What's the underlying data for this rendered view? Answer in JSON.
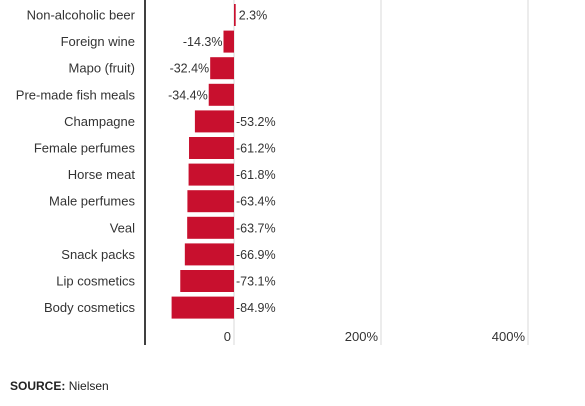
{
  "chart_data": {
    "type": "bar",
    "orientation": "horizontal",
    "categories": [
      "Non-alcoholic beer",
      "Foreign wine",
      "Mapo (fruit)",
      "Pre-made fish meals",
      "Champagne",
      "Female perfumes",
      "Horse meat",
      "Male perfumes",
      "Veal",
      "Snack packs",
      "Lip cosmetics",
      "Body cosmetics"
    ],
    "values": [
      2.3,
      -14.3,
      -32.4,
      -34.4,
      -53.2,
      -61.2,
      -61.8,
      -63.4,
      -63.7,
      -66.9,
      -73.1,
      -84.9
    ],
    "value_labels": [
      "2.3%",
      "-14.3%",
      "-32.4%",
      "-34.4%",
      "-53.2%",
      "-61.2%",
      "-61.8%",
      "-63.4%",
      "-63.7%",
      "-66.9%",
      "-73.1%",
      "-84.9%"
    ],
    "x_ticks": [
      0,
      200,
      400
    ],
    "x_tick_labels": [
      "0",
      "200%",
      "400%"
    ],
    "xlim": [
      -100,
      450
    ],
    "grid": true,
    "colors": {
      "bar": "#c8102e",
      "grid": "#d9d9d9",
      "axis": "#000000",
      "text": "#333333"
    }
  },
  "source": {
    "label": "SOURCE:",
    "text": "Nielsen"
  }
}
